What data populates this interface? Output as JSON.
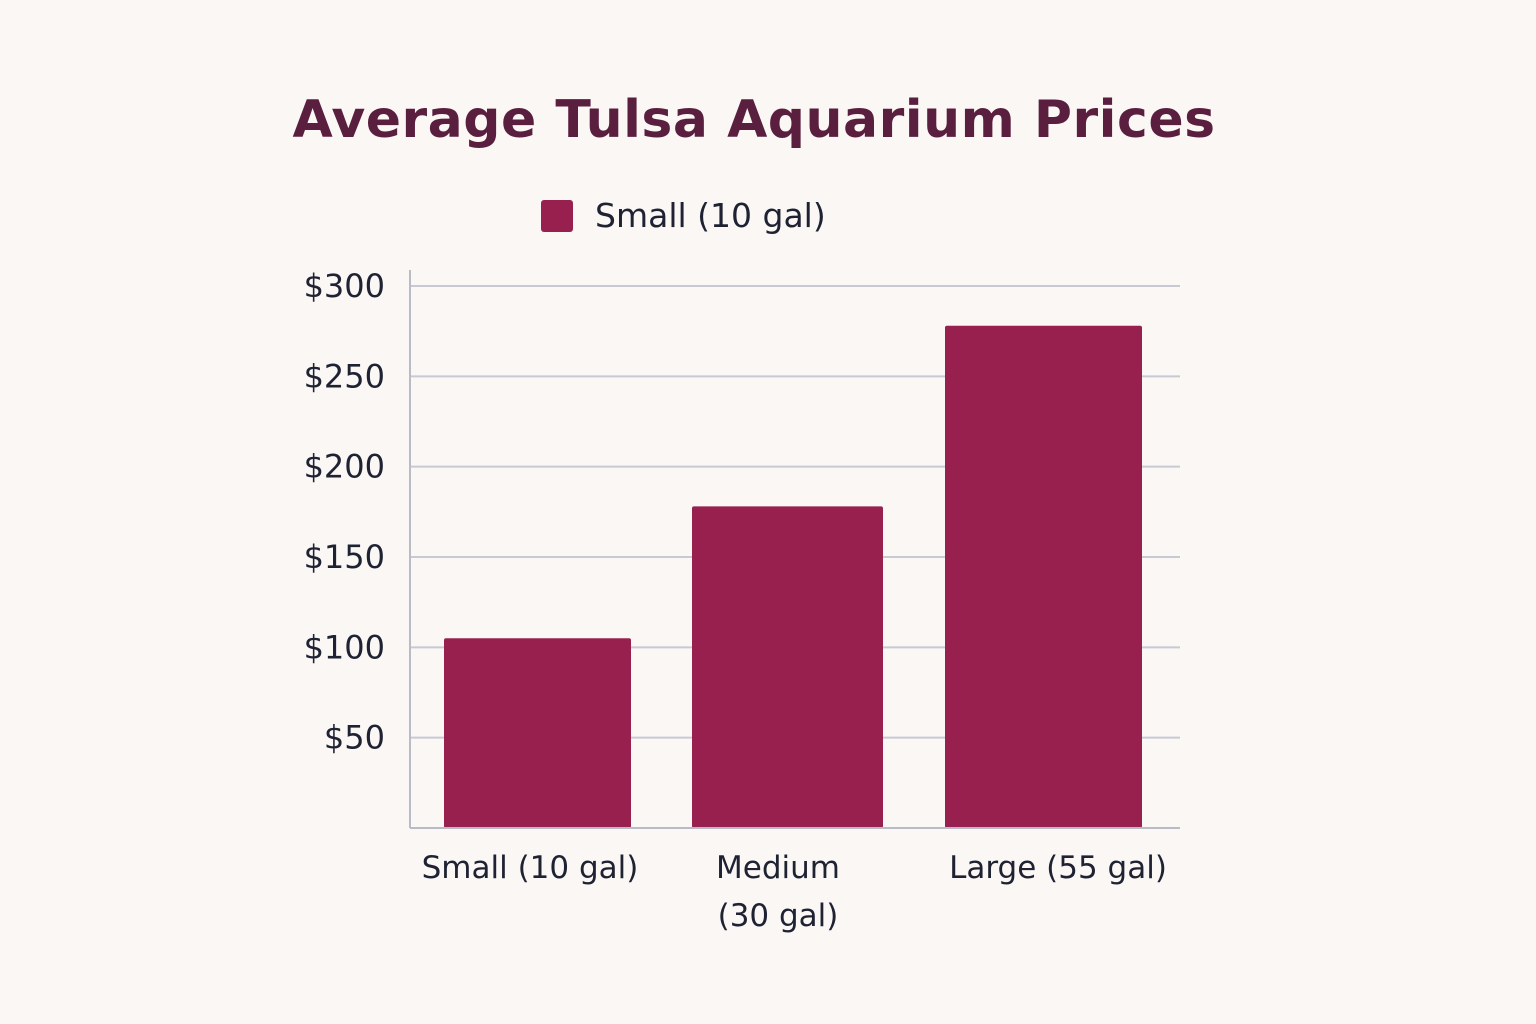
{
  "chart_data": {
    "type": "bar",
    "title": "Average Tulsa Aquarium Prices",
    "categories": [
      "Small (10 gal)",
      "Medium (30 gal)",
      "Large (55 gal)"
    ],
    "category_lines": [
      [
        "Small (10 gal)"
      ],
      [
        "Medium",
        "(30 gal)"
      ],
      [
        "Large (55 gal)"
      ]
    ],
    "series": [
      {
        "name": "Small (10 gal)",
        "values": [
          105,
          178,
          278
        ]
      }
    ],
    "yticks": [
      50,
      100,
      150,
      200,
      250,
      300
    ],
    "ytick_labels": [
      "$50",
      "$100",
      "$150",
      "$200",
      "$250",
      "$300"
    ],
    "ylim": [
      0,
      300
    ],
    "xlabel": "",
    "ylabel": "",
    "grid": true,
    "legend_position": "top",
    "colors": {
      "bar": "#98204f",
      "title": "#5a1e3e",
      "grid": "#c7c9d3",
      "axis": "#b9bbc6",
      "text": "#1f2233"
    }
  }
}
